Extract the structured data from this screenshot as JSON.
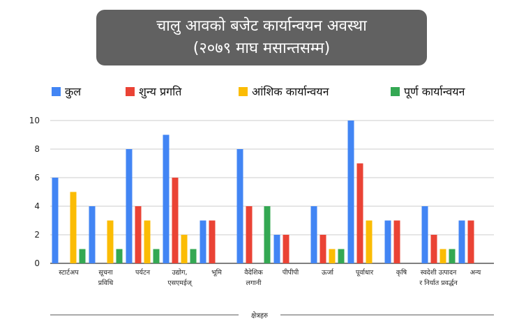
{
  "title": {
    "line1": "चालु आवको बजेट कार्यान्वयन अवस्था",
    "line2": "(२०७९ माघ मसान्तसम्म)"
  },
  "chart_data": {
    "type": "bar",
    "xlabel": "क्षेत्रहरु",
    "ylabel": "",
    "ylim": [
      0,
      10
    ],
    "yticks": [
      0,
      2,
      4,
      6,
      8,
      10
    ],
    "grid": true,
    "legend_position": "top",
    "categories": [
      [
        "स्टार्टअप"
      ],
      [
        "सूचना",
        "प्रविधि"
      ],
      [
        "पर्यटन"
      ],
      [
        "उद्योग,",
        "एसएमईज्"
      ],
      [
        "भूमि"
      ],
      [
        "वैदेशिक",
        "लगानी"
      ],
      [
        "पीपीपी"
      ],
      [
        "ऊर्जा"
      ],
      [
        "पूर्वाधार"
      ],
      [
        "कृषि"
      ],
      [
        "स्वदेशी उत्पादन",
        "र निर्यात प्रवर्द्धन"
      ],
      [
        "अन्य"
      ]
    ],
    "series": [
      {
        "name": "कुल",
        "color": "#4285F4",
        "values": [
          6,
          4,
          8,
          9,
          3,
          8,
          2,
          4,
          10,
          3,
          4,
          3
        ]
      },
      {
        "name": "शुन्य प्रगति",
        "color": "#EA4335",
        "values": [
          null,
          null,
          4,
          6,
          3,
          4,
          2,
          2,
          7,
          3,
          2,
          3
        ]
      },
      {
        "name": "आंशिक कार्यान्वयन",
        "color": "#FBBC04",
        "values": [
          5,
          3,
          3,
          2,
          null,
          null,
          null,
          1,
          3,
          null,
          1,
          null
        ]
      },
      {
        "name": "पूर्ण कार्यान्वयन",
        "color": "#34A853",
        "values": [
          1,
          1,
          1,
          1,
          null,
          4,
          null,
          1,
          null,
          null,
          1,
          null
        ]
      }
    ]
  }
}
